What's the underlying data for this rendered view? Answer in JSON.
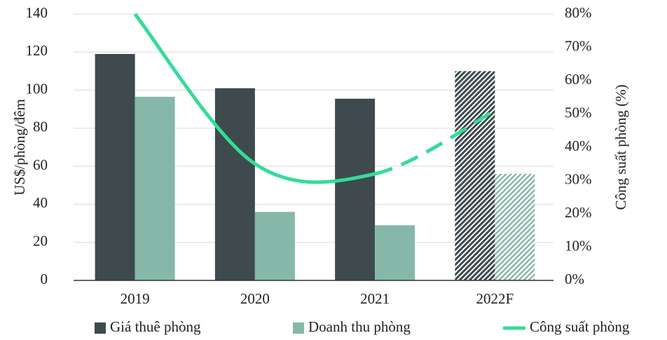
{
  "chart_data": {
    "type": "bar_line",
    "categories": [
      "2019",
      "2020",
      "2021",
      "2022F"
    ],
    "series": [
      {
        "name": "Giá thuê phòng",
        "color": "#3e4a4d",
        "values": [
          119,
          101,
          95.5,
          110
        ]
      },
      {
        "name": "Doanh thu phòng",
        "color": "#86b8aa",
        "values": [
          96.5,
          36,
          29,
          56
        ]
      },
      {
        "name": "Công suất phòng",
        "color": "#34dc98",
        "type": "line",
        "axis": "y2",
        "values": [
          80,
          35,
          32,
          51
        ]
      }
    ],
    "ylabel": "US$/phòng/đêm",
    "y2label": "Công suất phòng (%)",
    "ylim": [
      0,
      140
    ],
    "yticks": [
      0,
      20,
      40,
      60,
      80,
      100,
      120,
      140
    ],
    "y2lim": [
      0,
      80
    ],
    "y2ticks": [
      {
        "value": 0,
        "label": "0%"
      },
      {
        "value": 10,
        "label": "10%"
      },
      {
        "value": 20,
        "label": "20%"
      },
      {
        "value": 30,
        "label": "30%"
      },
      {
        "value": 40,
        "label": "40%"
      },
      {
        "value": 50,
        "label": "50%"
      },
      {
        "value": 60,
        "label": "60%"
      },
      {
        "value": 70,
        "label": "70%"
      },
      {
        "value": 80,
        "label": "80%"
      }
    ],
    "grid": true,
    "legend": "bottom"
  }
}
